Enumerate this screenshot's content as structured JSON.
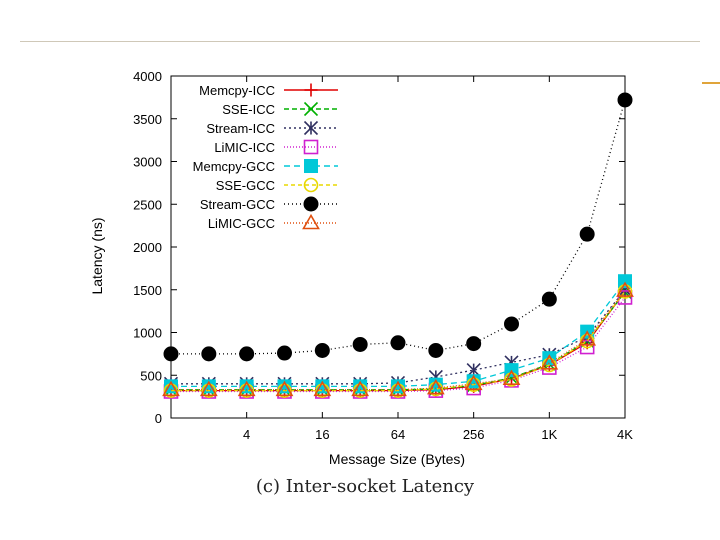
{
  "caption": "(c) Inter-socket Latency",
  "chart_data": {
    "type": "line",
    "xlabel": "Message Size (Bytes)",
    "ylabel": "Latency (ns)",
    "ylim": [
      0,
      4000
    ],
    "yticks": [
      0,
      500,
      1000,
      1500,
      2000,
      2500,
      3000,
      3500,
      4000
    ],
    "x": [
      1,
      2,
      4,
      8,
      16,
      32,
      64,
      128,
      256,
      512,
      1024,
      2048,
      4096
    ],
    "xscale": "log2",
    "xticks": [
      4,
      16,
      64,
      256,
      1024,
      4096
    ],
    "xtick_labels": [
      "4",
      "16",
      "64",
      "256",
      "1K",
      "4K"
    ],
    "legend_position": "top-left",
    "grid": false,
    "series": [
      {
        "name": "Memcpy-ICC",
        "color": "#e00000",
        "marker": "plus",
        "dash": "none",
        "values": [
          320,
          320,
          320,
          320,
          320,
          320,
          320,
          330,
          370,
          460,
          620,
          880,
          1480
        ]
      },
      {
        "name": "SSE-ICC",
        "color": "#00b000",
        "marker": "x",
        "dash": "5,3",
        "values": [
          330,
          330,
          330,
          330,
          330,
          330,
          330,
          340,
          380,
          470,
          630,
          900,
          1470
        ]
      },
      {
        "name": "Stream-ICC",
        "color": "#303060",
        "marker": "star",
        "dash": "2,3",
        "values": [
          400,
          400,
          400,
          400,
          400,
          400,
          410,
          480,
          560,
          650,
          740,
          950,
          1500
        ]
      },
      {
        "name": "LiMIC-ICC",
        "color": "#d020d0",
        "marker": "square-open",
        "dash": "1,2",
        "values": [
          310,
          310,
          310,
          310,
          310,
          310,
          310,
          320,
          350,
          440,
          590,
          830,
          1410
        ]
      },
      {
        "name": "Memcpy-GCC",
        "color": "#00c8d8",
        "marker": "square-filled",
        "dash": "6,4",
        "values": [
          370,
          370,
          370,
          370,
          370,
          370,
          370,
          390,
          430,
          560,
          700,
          1010,
          1600
        ]
      },
      {
        "name": "SSE-GCC",
        "color": "#e8d800",
        "marker": "circle-open",
        "dash": "4,3",
        "values": [
          320,
          320,
          320,
          320,
          320,
          320,
          320,
          340,
          390,
          450,
          620,
          900,
          1480
        ]
      },
      {
        "name": "Stream-GCC",
        "color": "#000000",
        "marker": "circle-filled",
        "dash": "1,3",
        "values": [
          750,
          750,
          750,
          760,
          790,
          860,
          880,
          790,
          870,
          1100,
          1390,
          2150,
          3720
        ]
      },
      {
        "name": "LiMIC-GCC",
        "color": "#e05010",
        "marker": "triangle-open",
        "dash": "1,2",
        "values": [
          330,
          330,
          330,
          330,
          330,
          330,
          330,
          350,
          400,
          460,
          640,
          920,
          1490
        ]
      }
    ]
  }
}
